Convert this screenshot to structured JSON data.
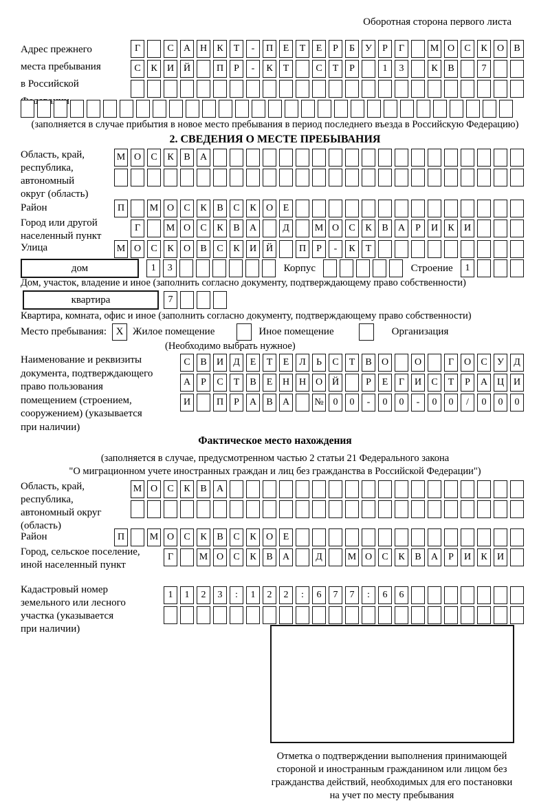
{
  "header": {
    "note": "Оборотная сторона первого листа"
  },
  "prev_address": {
    "label_lines": [
      "Адрес прежнего",
      "места пребывания",
      "в Российской",
      "Федерации"
    ],
    "rows": [
      {
        "text": "Г САНКТ-ПЕТЕРБУРГ МОСКОВ",
        "count": 24
      },
      {
        "text": "СКИЙ ПР-КТ СТР 13 КВ 7",
        "count": 24
      },
      {
        "text": "",
        "count": 24
      },
      {
        "text": "",
        "count": 30
      }
    ],
    "note": "(заполняется в случае прибытия в новое место пребывания в период последнего въезда в Российскую Федерацию)"
  },
  "section2": {
    "title": "2. СВЕДЕНИЯ О МЕСТЕ ПРЕБЫВАНИЯ",
    "region": {
      "label_lines": [
        "Область, край,",
        "республика,",
        "автономный",
        "округ (область)"
      ],
      "rows": [
        {
          "text": "МОСКВА",
          "count": 25
        },
        {
          "text": "",
          "count": 25
        }
      ]
    },
    "district": {
      "label": "Район",
      "row": {
        "text": "П МОСКВСКОЕ",
        "count": 25
      }
    },
    "city": {
      "label_lines": [
        "Город или другой",
        "населенный пункт"
      ],
      "row": {
        "text": "Г МОСКВА Д МОСКВАРИКИ",
        "count": 24
      }
    },
    "street": {
      "label": "Улица",
      "row": {
        "text": "МОСКОВСКИЙ ПР-КТ",
        "count": 25
      }
    },
    "house": {
      "box_label": "дом",
      "number": {
        "text": "13",
        "count": 8
      },
      "korpus_label": "Корпус",
      "korpus": {
        "text": "",
        "count": 5
      },
      "stroenie_label": "Строение",
      "stroenie": {
        "text": "1",
        "count": 4
      },
      "note": "Дом, участок, владение и иное (заполнить согласно документу, подтверждающему право собственности)"
    },
    "apartment": {
      "box_label": "квартира",
      "number": {
        "text": "7",
        "count": 4
      },
      "note": "Квартира, комната, офис и иное (заполнить согласно документу, подтверждающему право собственности)"
    },
    "stay_place": {
      "label": "Место пребывания:",
      "options": [
        {
          "label": "Жилое помещение",
          "mark": "X"
        },
        {
          "label": "Иное помещение",
          "mark": ""
        },
        {
          "label": "Организация",
          "mark": ""
        }
      ],
      "note": "(Необходимо выбрать нужное)"
    },
    "document": {
      "label_lines": [
        "Наименование и реквизиты",
        "документа, подтверждающего",
        "право пользования",
        "помещением (строением,",
        "сооружением) (указывается",
        "при наличии)"
      ],
      "rows": [
        {
          "text": "СВИДЕТЕЛЬСТВО О ГОСУД",
          "count": 21
        },
        {
          "text": "АРСТВЕННОЙ РЕГИСТРАЦИ",
          "count": 21
        },
        {
          "text": "И ПРАВА №00-00-00/000",
          "count": 21
        }
      ]
    }
  },
  "actual_location": {
    "title": "Фактическое место нахождения",
    "note_lines": [
      "(заполняется в случае, предусмотренном частью 2 статьи 21 Федерального закона",
      "\"О миграционном учете иностранных граждан и лиц без гражданства в Российской Федерации\")"
    ],
    "region": {
      "label_lines": [
        "Область, край,",
        "республика,",
        "автономный округ",
        "(область)"
      ],
      "rows": [
        {
          "text": "МОСКВА",
          "count": 24
        },
        {
          "text": "",
          "count": 24
        }
      ]
    },
    "district": {
      "label": "Район",
      "row": {
        "text": "П МОСКВСКОЕ",
        "count": 25
      }
    },
    "city": {
      "label_lines": [
        "Город, сельское поселение,",
        "иной населенный пункт"
      ],
      "row": {
        "text": "Г МОСКВА Д МОСКВАРИКИ",
        "count": 22
      }
    },
    "cadastral": {
      "label_lines": [
        "Кадастровый номер",
        "земельного или лесного",
        "участка (указывается",
        "при наличии)"
      ],
      "rows": [
        {
          "text": "1123:122:677:66",
          "count": 22
        },
        {
          "text": "",
          "count": 22
        }
      ]
    },
    "stamp_caption_lines": [
      "Отметка о подтверждении выполнения принимающей",
      "стороной и иностранным гражданином или лицом без",
      "гражданства действий, необходимых для его постановки",
      "на учет по месту пребывания"
    ]
  }
}
